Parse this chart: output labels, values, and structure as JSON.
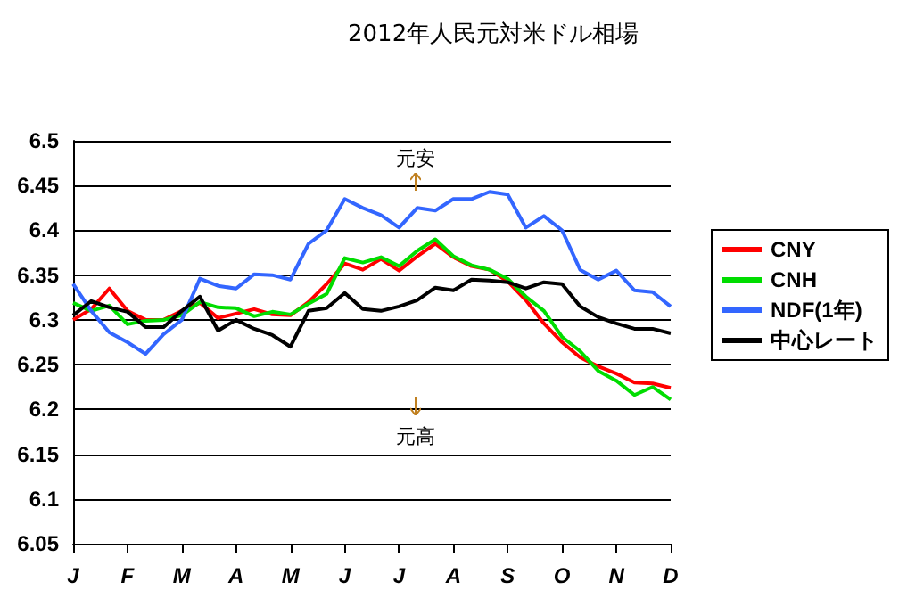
{
  "chart_data": {
    "type": "line",
    "title": "2012年人民元対米ドル相場",
    "categories": [
      "J",
      null,
      null,
      "F",
      null,
      null,
      "M",
      null,
      null,
      "A",
      null,
      null,
      "M",
      null,
      null,
      "J",
      null,
      null,
      "J",
      null,
      null,
      "A",
      null,
      null,
      "S",
      null,
      null,
      "O",
      null,
      null,
      "N",
      null,
      null,
      "D"
    ],
    "ylim": [
      6.05,
      6.5
    ],
    "yticks": [
      6.05,
      6.1,
      6.15,
      6.2,
      6.25,
      6.3,
      6.35,
      6.4,
      6.45,
      6.5
    ],
    "grid": "y",
    "legend": "right",
    "marker": "none",
    "line_style": "solid",
    "annotations": [
      "元安",
      "元高"
    ],
    "series": [
      {
        "name": "CNY",
        "color": "#ff0000",
        "values": [
          6.3,
          6.312,
          6.335,
          6.31,
          6.3,
          6.3,
          6.31,
          6.319,
          6.302,
          6.307,
          6.312,
          6.306,
          6.305,
          6.32,
          6.34,
          6.363,
          6.356,
          6.368,
          6.355,
          6.371,
          6.385,
          6.37,
          6.36,
          6.356,
          6.343,
          6.322,
          6.296,
          6.275,
          6.258,
          6.248,
          6.24,
          6.23,
          6.229,
          6.224
        ]
      },
      {
        "name": "CNH",
        "color": "#00dd00",
        "values": [
          6.319,
          6.31,
          6.316,
          6.295,
          6.299,
          6.3,
          6.305,
          6.32,
          6.314,
          6.313,
          6.304,
          6.309,
          6.306,
          6.318,
          6.329,
          6.369,
          6.364,
          6.37,
          6.36,
          6.377,
          6.39,
          6.371,
          6.361,
          6.356,
          6.346,
          6.326,
          6.31,
          6.281,
          6.265,
          6.243,
          6.232,
          6.216,
          6.225,
          6.211
        ]
      },
      {
        "name": "NDF(1年)",
        "color": "#3366ff",
        "values": [
          6.34,
          6.31,
          6.286,
          6.275,
          6.262,
          6.284,
          6.3,
          6.346,
          6.338,
          6.335,
          6.351,
          6.35,
          6.345,
          6.385,
          6.4,
          6.435,
          6.425,
          6.417,
          6.403,
          6.425,
          6.422,
          6.435,
          6.435,
          6.443,
          6.44,
          6.403,
          6.416,
          6.4,
          6.356,
          6.345,
          6.355,
          6.333,
          6.331,
          6.315
        ]
      },
      {
        "name": "中心レート",
        "color": "#000000",
        "values": [
          6.305,
          6.321,
          6.314,
          6.309,
          6.292,
          6.292,
          6.31,
          6.326,
          6.288,
          6.3,
          6.29,
          6.283,
          6.27,
          6.31,
          6.313,
          6.33,
          6.312,
          6.31,
          6.315,
          6.322,
          6.336,
          6.333,
          6.345,
          6.344,
          6.342,
          6.335,
          6.342,
          6.34,
          6.315,
          6.303,
          6.296,
          6.29,
          6.29,
          6.285
        ]
      }
    ]
  }
}
